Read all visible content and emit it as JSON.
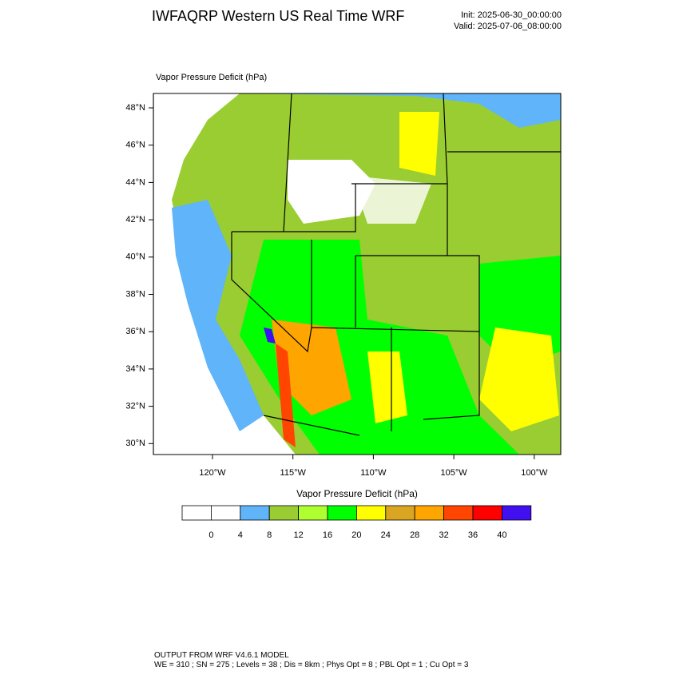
{
  "header": {
    "title": "IWFAQRP Western US Real Time WRF",
    "init": "Init: 2025-06-30_00:00:00",
    "valid": "Valid: 2025-07-06_08:00:00"
  },
  "map": {
    "subtitle": "Vapor Pressure Deficit   (hPa)",
    "lat_ticks": [
      {
        "value": 48,
        "label": "48°N"
      },
      {
        "value": 46,
        "label": "46°N"
      },
      {
        "value": 44,
        "label": "44°N"
      },
      {
        "value": 42,
        "label": "42°N"
      },
      {
        "value": 40,
        "label": "40°N"
      },
      {
        "value": 38,
        "label": "38°N"
      },
      {
        "value": 36,
        "label": "36°N"
      },
      {
        "value": 34,
        "label": "34°N"
      },
      {
        "value": 32,
        "label": "32°N"
      },
      {
        "value": 30,
        "label": "30°N"
      }
    ],
    "lon_ticks": [
      {
        "value": -120,
        "label": "120°W"
      },
      {
        "value": -115,
        "label": "115°W"
      },
      {
        "value": -110,
        "label": "110°W"
      },
      {
        "value": -105,
        "label": "105°W"
      },
      {
        "value": -100,
        "label": "100°W"
      }
    ]
  },
  "colorbar": {
    "title": "Vapor Pressure Deficit  (hPa)",
    "colors": [
      "#ffffff",
      "#ffffff",
      "#5fb4fa",
      "#9acd32",
      "#adff2f",
      "#00ff00",
      "#ffff00",
      "#daa520",
      "#ffa500",
      "#ff4500",
      "#ff0000",
      "#4010f0"
    ],
    "levels": [
      0,
      4,
      8,
      12,
      16,
      20,
      24,
      28,
      32,
      36,
      40
    ]
  },
  "footer": {
    "line1": "OUTPUT FROM WRF V4.6.1 MODEL",
    "line2": "WE = 310 ; SN = 275 ; Levels = 38 ; Dis = 8km ; Phys Opt = 8 ; PBL Opt = 1 ; Cu Opt = 3"
  }
}
